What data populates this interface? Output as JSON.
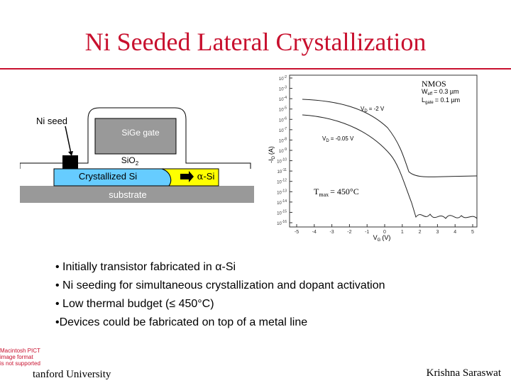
{
  "slide": {
    "title": "Ni Seeded Lateral Crystallization"
  },
  "diagram": {
    "ni_seed_label": "Ni seed",
    "gate_label": "SiGe gate",
    "oxide_label": "SiO",
    "oxide_subscript": "2",
    "crystallized_label": "Crystallized Si",
    "alpha_si_label": "-Si",
    "alpha_glyph": "α",
    "substrate_label": "substrate",
    "colors": {
      "gate": "#999999",
      "crystallized": "#66ccff",
      "alpha_si": "#ffff00",
      "substrate": "#999999"
    }
  },
  "graph": {
    "nmos_label": "NMOS",
    "weff_label": "W",
    "weff_sub": "eff",
    "weff_value": "= 0.3 µm",
    "lgate_label": "L",
    "lgate_sub": "gate",
    "lgate_value": "= 0.1 µm",
    "vd_high_label": "V",
    "vd_high_sub": "D",
    "vd_high_value": "= -2 V",
    "vd_low_label": "V",
    "vd_low_sub": "D",
    "vd_low_value": "= -0.05 V",
    "ylabel": "-I",
    "ylabel_sub": "D",
    "ylabel_unit": "(A)",
    "xlabel": "V",
    "xlabel_sub": "G",
    "xlabel_unit": "(V)",
    "ytick_prefix": "10",
    "yticks": [
      "-2",
      "-3",
      "-4",
      "-5",
      "-6",
      "-7",
      "-8",
      "-9",
      "-10",
      "-11",
      "-12",
      "-13",
      "-14",
      "-15",
      "-16"
    ],
    "xticks": [
      "-5",
      "-4",
      "-3",
      "-2",
      "-1",
      "0",
      "1",
      "2",
      "3",
      "4",
      "5"
    ],
    "tmax_label": "T",
    "tmax_sub": "max",
    "tmax_value": "= 450°C"
  },
  "bullets": [
    "• Initially transistor fabricated in α-Si",
    "• Ni seeding for simultaneous crystallization and dopant activation",
    "• Low thermal budget (≤ 450°C)",
    "•Devices could be fabricated on top of a metal line"
  ],
  "footer": {
    "left": "tanford University",
    "right": "Krishna Saraswat"
  },
  "pict_notice": [
    "Macintosh PICT",
    "image format",
    "is not supported"
  ]
}
